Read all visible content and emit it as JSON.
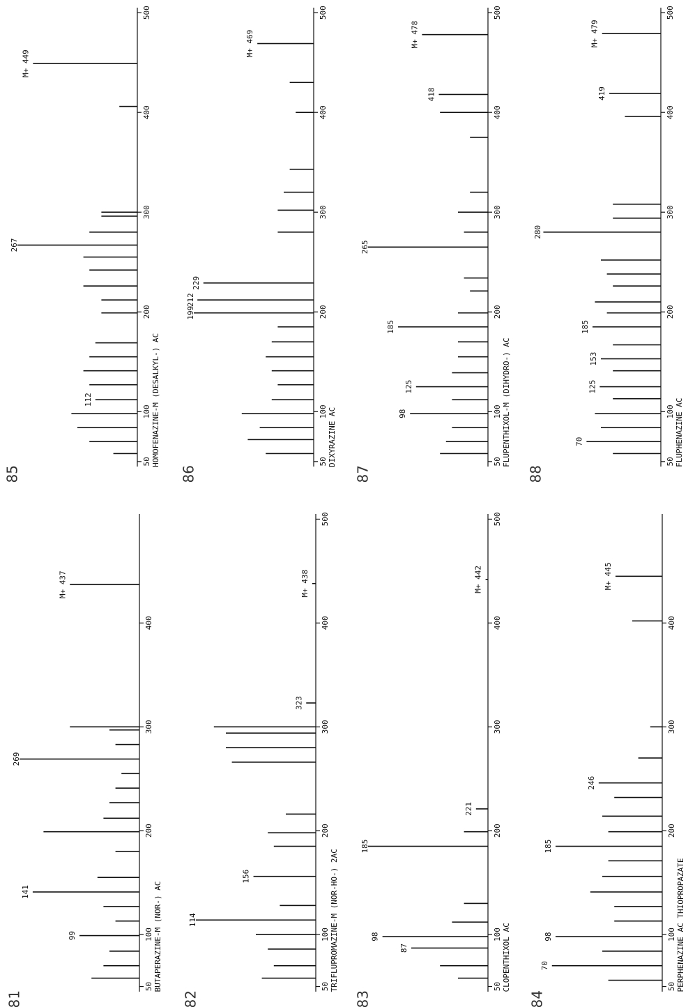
{
  "chart_data": [
    {
      "type": "bar",
      "number": "81",
      "title": "BUTAPERAZINE-M (NOR-) AC",
      "color": "#111111",
      "x": [
        58,
        70,
        84,
        99,
        113,
        127,
        141,
        155,
        180,
        199,
        212,
        227,
        241,
        255,
        269,
        283,
        297,
        300,
        437
      ],
      "values": [
        40,
        30,
        25,
        50,
        20,
        30,
        89,
        35,
        20,
        80,
        30,
        25,
        20,
        15,
        100,
        20,
        25,
        58,
        58
      ],
      "x_labels": [
        null,
        null,
        null,
        "99",
        null,
        null,
        "141",
        null,
        null,
        null,
        null,
        null,
        null,
        null,
        "269",
        null,
        null,
        null,
        "M+ 437"
      ],
      "xlim": [
        45,
        505
      ],
      "xticks": [
        50,
        100,
        200,
        300,
        400
      ],
      "ylim": [
        0,
        100
      ]
    },
    {
      "type": "bar",
      "number": "82",
      "title": "TRIFLUPROMAZINE-M (NOR-HO-) 2AC",
      "color": "#111111",
      "x": [
        58,
        70,
        86,
        100,
        114,
        128,
        156,
        185,
        198,
        216,
        266,
        280,
        294,
        300,
        323,
        438
      ],
      "values": [
        45,
        35,
        40,
        50,
        100,
        30,
        52,
        35,
        40,
        25,
        70,
        75,
        75,
        85,
        8,
        3
      ],
      "x_labels": [
        null,
        null,
        null,
        null,
        "114",
        null,
        "156",
        null,
        null,
        null,
        null,
        null,
        null,
        null,
        "323",
        "M+ 438"
      ],
      "xlim": [
        45,
        505
      ],
      "xticks": [
        50,
        100,
        200,
        300,
        400,
        500
      ],
      "ylim": [
        0,
        100
      ]
    },
    {
      "type": "bar",
      "number": "83",
      "title": "CLOPENTHIXOL AC",
      "color": "#111111",
      "x": [
        58,
        70,
        87,
        98,
        112,
        130,
        185,
        199,
        221,
        442
      ],
      "values": [
        25,
        40,
        64,
        88,
        30,
        20,
        100,
        20,
        10,
        2
      ],
      "x_labels": [
        null,
        null,
        "87",
        "98",
        null,
        null,
        "185",
        null,
        "221",
        "M+ 442"
      ],
      "xlim": [
        45,
        505
      ],
      "xticks": [
        50,
        100,
        200,
        300,
        400,
        500
      ],
      "ylim": [
        0,
        100
      ]
    },
    {
      "type": "bar",
      "number": "84",
      "title": "PERPHENAZINE AC THIOPROPAZATE",
      "color": "#111111",
      "x": [
        56,
        70,
        84,
        98,
        113,
        127,
        141,
        156,
        171,
        185,
        199,
        214,
        232,
        246,
        270,
        300,
        402,
        445
      ],
      "values": [
        45,
        92,
        50,
        89,
        40,
        40,
        60,
        50,
        45,
        89,
        45,
        50,
        40,
        53,
        20,
        10,
        25,
        39
      ],
      "x_labels": [
        null,
        "70",
        null,
        "98",
        null,
        null,
        null,
        null,
        null,
        "185",
        null,
        null,
        null,
        "246",
        null,
        null,
        null,
        "M+ 445"
      ],
      "xlim": [
        45,
        505
      ],
      "xticks": [
        50,
        100,
        200,
        300,
        400
      ],
      "ylim": [
        0,
        100
      ]
    },
    {
      "type": "bar",
      "number": "85",
      "title": "HOMOFENAZINE-M (DESALKYL-) AC",
      "color": "#111111",
      "x": [
        58,
        70,
        84,
        98,
        112,
        127,
        141,
        155,
        169,
        199,
        212,
        226,
        242,
        255,
        267,
        280,
        296,
        300,
        406,
        449
      ],
      "values": [
        20,
        40,
        50,
        55,
        35,
        40,
        45,
        40,
        35,
        30,
        30,
        45,
        40,
        45,
        100,
        40,
        30,
        30,
        15,
        87
      ],
      "x_labels": [
        null,
        null,
        null,
        null,
        "112",
        null,
        null,
        null,
        null,
        null,
        null,
        null,
        null,
        null,
        "267",
        null,
        null,
        null,
        null,
        "M+ 449"
      ],
      "xlim": [
        45,
        505
      ],
      "xticks": [
        50,
        100,
        200,
        300,
        400,
        500
      ],
      "ylim": [
        0,
        100
      ]
    },
    {
      "type": "bar",
      "number": "86",
      "title": "DIXYRAZINE AC",
      "color": "#111111",
      "x": [
        58,
        72,
        84,
        98,
        112,
        127,
        141,
        155,
        170,
        185,
        199,
        212,
        229,
        280,
        302,
        320,
        343,
        400,
        430,
        469
      ],
      "values": [
        40,
        55,
        45,
        60,
        35,
        30,
        35,
        40,
        35,
        30,
        100,
        97,
        92,
        30,
        30,
        25,
        20,
        15,
        20,
        47
      ],
      "x_labels": [
        null,
        null,
        null,
        null,
        null,
        null,
        null,
        null,
        null,
        null,
        "199",
        "212",
        "229",
        null,
        null,
        null,
        null,
        null,
        null,
        "M+ 469"
      ],
      "xlim": [
        45,
        505
      ],
      "xticks": [
        50,
        100,
        200,
        300,
        400,
        500
      ],
      "ylim": [
        0,
        100
      ]
    },
    {
      "type": "bar",
      "number": "87",
      "title": "FLUPENTHIXOL-M (DIHYDRO-) AC",
      "color": "#111111",
      "x": [
        58,
        70,
        84,
        98,
        112,
        125,
        139,
        155,
        170,
        185,
        199,
        221,
        234,
        265,
        280,
        300,
        320,
        375,
        400,
        418,
        478
      ],
      "values": [
        40,
        35,
        30,
        65,
        30,
        60,
        30,
        25,
        25,
        75,
        25,
        15,
        20,
        100,
        20,
        25,
        15,
        15,
        40,
        41,
        55
      ],
      "x_labels": [
        null,
        null,
        null,
        "98",
        null,
        "125",
        null,
        null,
        null,
        "185",
        null,
        null,
        null,
        "265",
        null,
        null,
        null,
        null,
        null,
        "418",
        "M+ 478"
      ],
      "xlim": [
        45,
        505
      ],
      "xticks": [
        50,
        100,
        200,
        300,
        400,
        500
      ],
      "ylim": [
        0,
        100
      ]
    },
    {
      "type": "bar",
      "number": "88",
      "title": "FLUPHENAZINE AC",
      "color": "#111111",
      "x": [
        58,
        70,
        84,
        98,
        113,
        125,
        141,
        153,
        167,
        185,
        199,
        210,
        226,
        238,
        252,
        280,
        294,
        308,
        396,
        419,
        479
      ],
      "values": [
        40,
        62,
        50,
        55,
        40,
        51,
        40,
        50,
        40,
        57,
        45,
        55,
        40,
        45,
        50,
        98,
        40,
        40,
        30,
        43,
        49
      ],
      "x_labels": [
        null,
        "70",
        null,
        null,
        null,
        "125",
        null,
        "153",
        null,
        "185",
        null,
        null,
        null,
        null,
        null,
        "280",
        null,
        null,
        null,
        "419",
        "M+ 479"
      ],
      "xlim": [
        45,
        505
      ],
      "xticks": [
        50,
        100,
        200,
        300,
        400,
        500
      ],
      "ylim": [
        0,
        100
      ]
    }
  ]
}
